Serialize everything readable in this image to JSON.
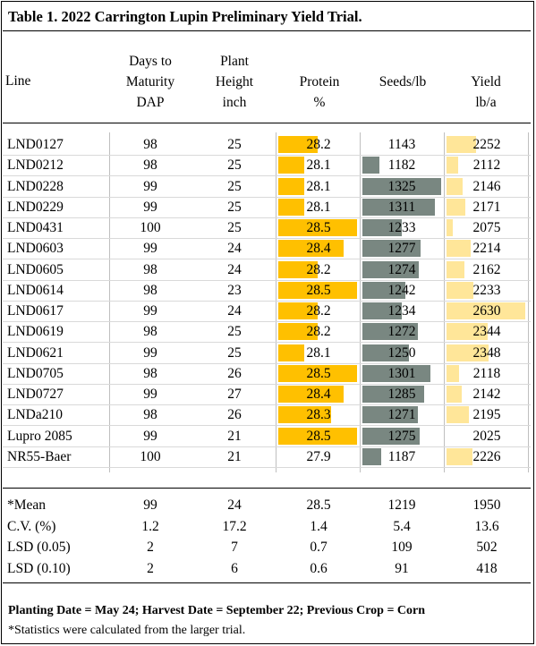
{
  "title": "Table 1. 2022 Carrington Lupin Preliminary Yield Trial.",
  "headers": {
    "line": "Line",
    "days": [
      "Days to",
      "Maturity",
      "DAP"
    ],
    "height": [
      "Plant",
      "Height",
      "inch"
    ],
    "protein": [
      "Protein",
      "%"
    ],
    "seeds": [
      "Seeds/lb"
    ],
    "yield": [
      "Yield",
      "lb/a"
    ]
  },
  "colors": {
    "protein_bar": "#FFC000",
    "seeds_bar": "#798781",
    "yield_bar": "#FFE699"
  },
  "rows": [
    {
      "line": "LND0127",
      "days": "98",
      "height": "25",
      "protein": "28.2",
      "seeds": "1143",
      "yield": "2252"
    },
    {
      "line": "LND0212",
      "days": "98",
      "height": "25",
      "protein": "28.1",
      "seeds": "1182",
      "yield": "2112"
    },
    {
      "line": "LND0228",
      "days": "99",
      "height": "25",
      "protein": "28.1",
      "seeds": "1325",
      "yield": "2146"
    },
    {
      "line": "LND0229",
      "days": "99",
      "height": "25",
      "protein": "28.1",
      "seeds": "1311",
      "yield": "2171"
    },
    {
      "line": "LND0431",
      "days": "100",
      "height": "25",
      "protein": "28.5",
      "seeds": "1233",
      "yield": "2075"
    },
    {
      "line": "LND0603",
      "days": "99",
      "height": "24",
      "protein": "28.4",
      "seeds": "1277",
      "yield": "2214"
    },
    {
      "line": "LND0605",
      "days": "98",
      "height": "24",
      "protein": "28.2",
      "seeds": "1274",
      "yield": "2162"
    },
    {
      "line": "LND0614",
      "days": "98",
      "height": "23",
      "protein": "28.5",
      "seeds": "1242",
      "yield": "2233"
    },
    {
      "line": "LND0617",
      "days": "99",
      "height": "24",
      "protein": "28.2",
      "seeds": "1234",
      "yield": "2630"
    },
    {
      "line": "LND0619",
      "days": "98",
      "height": "25",
      "protein": "28.2",
      "seeds": "1272",
      "yield": "2344"
    },
    {
      "line": "LND0621",
      "days": "99",
      "height": "25",
      "protein": "28.1",
      "seeds": "1250",
      "yield": "2348"
    },
    {
      "line": "LND0705",
      "days": "98",
      "height": "26",
      "protein": "28.5",
      "seeds": "1301",
      "yield": "2118"
    },
    {
      "line": "LND0727",
      "days": "99",
      "height": "27",
      "protein": "28.4",
      "seeds": "1285",
      "yield": "2142"
    },
    {
      "line": "LNDa210",
      "days": "98",
      "height": "26",
      "protein": "28.3",
      "seeds": "1271",
      "yield": "2195"
    },
    {
      "line": "Lupro 2085",
      "days": "99",
      "height": "21",
      "protein": "28.5",
      "seeds": "1275",
      "yield": "2025"
    },
    {
      "line": "NR55-Baer",
      "days": "100",
      "height": "21",
      "protein": "27.9",
      "seeds": "1187",
      "yield": "2226"
    }
  ],
  "stats": [
    {
      "label": "*Mean",
      "days": "99",
      "height": "24",
      "protein": "28.5",
      "seeds": "1219",
      "yield": "1950"
    },
    {
      "label": "C.V. (%)",
      "days": "1.2",
      "height": "17.2",
      "protein": "1.4",
      "seeds": "5.4",
      "yield": "13.6"
    },
    {
      "label": "LSD (0.05)",
      "days": "2",
      "height": "7",
      "protein": "0.7",
      "seeds": "109",
      "yield": "502"
    },
    {
      "label": "LSD (0.10)",
      "days": "2",
      "height": "6",
      "protein": "0.6",
      "seeds": "91",
      "yield": "418"
    }
  ],
  "notes": {
    "dates": "Planting Date = May 24; Harvest Date = September 22; Previous Crop = Corn",
    "footnote": "*Statistics were calculated from the larger trial."
  }
}
